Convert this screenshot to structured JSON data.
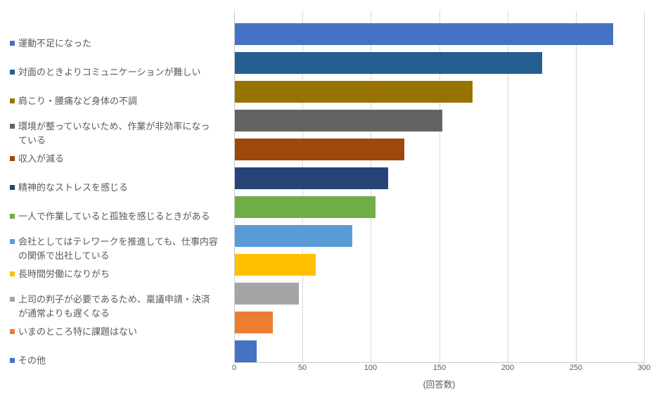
{
  "chart_data": {
    "type": "bar",
    "orientation": "horizontal",
    "title": "",
    "xlabel": "(回答数)",
    "xlim": [
      0,
      300
    ],
    "xticks": [
      0,
      50,
      100,
      150,
      200,
      250,
      300
    ],
    "grid": true,
    "legend_position": "none",
    "categories": [
      "運動不足になった",
      "対面のときよりコミュニケーションが難しい",
      "肩こり・腰痛など身体の不調",
      "環境が整っていないため、作業が非効率になっている",
      "収入が減る",
      "精神的なストレスを感じる",
      "一人で作業していると孤独を感じるときがある",
      "会社としてはテレワークを推進しても、仕事内容の関係で出社している",
      "長時間労働になりがち",
      "上司の判子が必要であるため、稟議申請・決済が通常よりも遅くなる",
      "いまのところ特に課題はない",
      "その他"
    ],
    "values": [
      277,
      225,
      174,
      152,
      124,
      112,
      103,
      86,
      59,
      47,
      28,
      16
    ],
    "colors": [
      "#4472C4",
      "#255E91",
      "#997300",
      "#636363",
      "#9E480E",
      "#264478",
      "#70AD47",
      "#5B9BD5",
      "#FFC000",
      "#A5A5A5",
      "#ED7D31",
      "#4472C4"
    ],
    "styles": {
      "background": "#FFFFFF",
      "gridline_color": "#D9D9D9",
      "axis_line_color": "#C9C9C9",
      "text_color": "#595959"
    }
  }
}
